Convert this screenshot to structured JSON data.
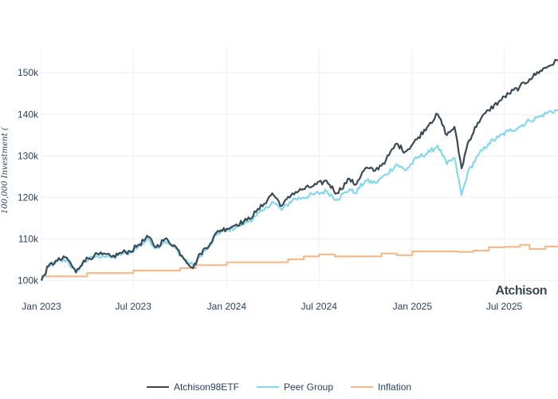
{
  "chart_data": {
    "type": "line",
    "title": "",
    "xlabel": "",
    "ylabel": "100,000 Investment (",
    "ylim": [
      98000,
      156000
    ],
    "yticks": [
      100000,
      110000,
      120000,
      130000,
      140000,
      150000
    ],
    "ytick_labels": [
      "100k",
      "110k",
      "120k",
      "130k",
      "140k",
      "150k"
    ],
    "xlim": [
      "2023-01-01",
      "2025-10-15"
    ],
    "xticks": [
      "2023-01-01",
      "2023-07-01",
      "2024-01-01",
      "2024-07-01",
      "2025-01-01",
      "2025-07-01"
    ],
    "xtick_labels": [
      "Jan 2023",
      "Jul 2023",
      "Jan 2024",
      "Jul 2024",
      "Jan 2025",
      "Jul 2025"
    ],
    "grid": true,
    "legend_position": "bottom-center",
    "watermark": "Atchison",
    "series": [
      {
        "name": "Atchison98ETF",
        "color": "#3b4a54",
        "width": 2.2,
        "points": [
          [
            "2023-01-01",
            100000
          ],
          [
            "2023-01-15",
            103500
          ],
          [
            "2023-02-01",
            104800
          ],
          [
            "2023-02-20",
            105500
          ],
          [
            "2023-03-10",
            102000
          ],
          [
            "2023-03-25",
            104800
          ],
          [
            "2023-04-15",
            106000
          ],
          [
            "2023-05-01",
            106300
          ],
          [
            "2023-05-20",
            105700
          ],
          [
            "2023-06-10",
            106800
          ],
          [
            "2023-06-25",
            107000
          ],
          [
            "2023-07-10",
            108500
          ],
          [
            "2023-07-31",
            110500
          ],
          [
            "2023-08-15",
            108000
          ],
          [
            "2023-09-01",
            110000
          ],
          [
            "2023-09-20",
            108500
          ],
          [
            "2023-10-05",
            106000
          ],
          [
            "2023-10-27",
            103000
          ],
          [
            "2023-11-10",
            106500
          ],
          [
            "2023-11-30",
            109000
          ],
          [
            "2023-12-15",
            112000
          ],
          [
            "2024-01-01",
            112500
          ],
          [
            "2024-01-20",
            113500
          ],
          [
            "2024-02-10",
            114500
          ],
          [
            "2024-02-28",
            116500
          ],
          [
            "2024-03-15",
            118500
          ],
          [
            "2024-03-31",
            121000
          ],
          [
            "2024-04-19",
            118000
          ],
          [
            "2024-05-10",
            121000
          ],
          [
            "2024-05-31",
            122000
          ],
          [
            "2024-06-20",
            122800
          ],
          [
            "2024-07-16",
            124000
          ],
          [
            "2024-08-05",
            121000
          ],
          [
            "2024-08-30",
            124500
          ],
          [
            "2024-09-10",
            123000
          ],
          [
            "2024-09-30",
            127000
          ],
          [
            "2024-10-20",
            126500
          ],
          [
            "2024-11-10",
            129000
          ],
          [
            "2024-12-01",
            133000
          ],
          [
            "2024-12-18",
            131000
          ],
          [
            "2025-01-10",
            134000
          ],
          [
            "2025-02-05",
            138000
          ],
          [
            "2025-02-20",
            140000
          ],
          [
            "2025-03-10",
            135000
          ],
          [
            "2025-03-25",
            137000
          ],
          [
            "2025-04-08",
            127000
          ],
          [
            "2025-04-20",
            133000
          ],
          [
            "2025-05-10",
            138000
          ],
          [
            "2025-05-31",
            141000
          ],
          [
            "2025-06-20",
            143000
          ],
          [
            "2025-07-10",
            145000
          ],
          [
            "2025-07-31",
            146500
          ],
          [
            "2025-08-20",
            148500
          ],
          [
            "2025-09-10",
            150500
          ],
          [
            "2025-09-25",
            151500
          ],
          [
            "2025-10-15",
            153000
          ]
        ]
      },
      {
        "name": "Peer Group",
        "color": "#84d8ee",
        "width": 2.2,
        "points": [
          [
            "2023-01-01",
            100000
          ],
          [
            "2023-01-15",
            103200
          ],
          [
            "2023-02-01",
            104500
          ],
          [
            "2023-02-20",
            105000
          ],
          [
            "2023-03-10",
            101800
          ],
          [
            "2023-03-25",
            104500
          ],
          [
            "2023-04-15",
            105700
          ],
          [
            "2023-05-01",
            106000
          ],
          [
            "2023-05-20",
            105500
          ],
          [
            "2023-06-10",
            106500
          ],
          [
            "2023-06-25",
            106800
          ],
          [
            "2023-07-10",
            108000
          ],
          [
            "2023-07-31",
            110000
          ],
          [
            "2023-08-15",
            107800
          ],
          [
            "2023-09-01",
            109500
          ],
          [
            "2023-09-20",
            108000
          ],
          [
            "2023-10-05",
            105700
          ],
          [
            "2023-10-27",
            103500
          ],
          [
            "2023-11-10",
            106000
          ],
          [
            "2023-11-30",
            108500
          ],
          [
            "2023-12-15",
            111500
          ],
          [
            "2024-01-01",
            112000
          ],
          [
            "2024-01-20",
            113000
          ],
          [
            "2024-02-10",
            114000
          ],
          [
            "2024-02-28",
            115500
          ],
          [
            "2024-03-15",
            117000
          ],
          [
            "2024-03-31",
            119000
          ],
          [
            "2024-04-19",
            117000
          ],
          [
            "2024-05-10",
            119500
          ],
          [
            "2024-05-31",
            120000
          ],
          [
            "2024-06-20",
            120700
          ],
          [
            "2024-07-16",
            121500
          ],
          [
            "2024-08-05",
            119500
          ],
          [
            "2024-08-30",
            122000
          ],
          [
            "2024-09-10",
            121000
          ],
          [
            "2024-09-30",
            124000
          ],
          [
            "2024-10-20",
            123500
          ],
          [
            "2024-11-10",
            125500
          ],
          [
            "2024-12-01",
            128000
          ],
          [
            "2024-12-18",
            126500
          ],
          [
            "2025-01-10",
            129500
          ],
          [
            "2025-02-05",
            131000
          ],
          [
            "2025-02-20",
            132500
          ],
          [
            "2025-03-10",
            128000
          ],
          [
            "2025-03-25",
            129500
          ],
          [
            "2025-04-08",
            120500
          ],
          [
            "2025-04-20",
            126000
          ],
          [
            "2025-05-10",
            130000
          ],
          [
            "2025-05-31",
            133000
          ],
          [
            "2025-06-20",
            134500
          ],
          [
            "2025-07-10",
            136000
          ],
          [
            "2025-07-31",
            137000
          ],
          [
            "2025-08-20",
            138500
          ],
          [
            "2025-09-10",
            139500
          ],
          [
            "2025-09-25",
            140500
          ],
          [
            "2025-10-15",
            141000
          ]
        ]
      },
      {
        "name": "Inflation",
        "color": "#f5b98a",
        "width": 2.2,
        "step": true,
        "points": [
          [
            "2023-01-01",
            101000
          ],
          [
            "2023-04-01",
            101000
          ],
          [
            "2023-04-01",
            101800
          ],
          [
            "2023-07-01",
            101800
          ],
          [
            "2023-07-01",
            102400
          ],
          [
            "2023-10-01",
            102400
          ],
          [
            "2023-10-01",
            103000
          ],
          [
            "2023-11-01",
            103000
          ],
          [
            "2023-11-01",
            103700
          ],
          [
            "2024-01-01",
            103700
          ],
          [
            "2024-01-01",
            104400
          ],
          [
            "2024-05-01",
            104400
          ],
          [
            "2024-05-01",
            105100
          ],
          [
            "2024-06-01",
            105100
          ],
          [
            "2024-06-01",
            105800
          ],
          [
            "2024-07-01",
            105800
          ],
          [
            "2024-07-01",
            106300
          ],
          [
            "2024-08-01",
            106300
          ],
          [
            "2024-08-01",
            105800
          ],
          [
            "2024-11-01",
            105800
          ],
          [
            "2024-11-01",
            106500
          ],
          [
            "2024-12-01",
            106500
          ],
          [
            "2024-12-01",
            106100
          ],
          [
            "2025-01-01",
            106100
          ],
          [
            "2025-01-01",
            107000
          ],
          [
            "2025-04-01",
            107000
          ],
          [
            "2025-04-01",
            106900
          ],
          [
            "2025-05-01",
            106900
          ],
          [
            "2025-05-01",
            107200
          ],
          [
            "2025-06-01",
            107200
          ],
          [
            "2025-06-01",
            108000
          ],
          [
            "2025-07-01",
            108000
          ],
          [
            "2025-07-01",
            108100
          ],
          [
            "2025-08-01",
            108100
          ],
          [
            "2025-08-01",
            108600
          ],
          [
            "2025-08-20",
            108600
          ],
          [
            "2025-08-20",
            107600
          ],
          [
            "2025-09-20",
            107600
          ],
          [
            "2025-09-20",
            108200
          ],
          [
            "2025-10-15",
            108200
          ]
        ]
      }
    ]
  }
}
